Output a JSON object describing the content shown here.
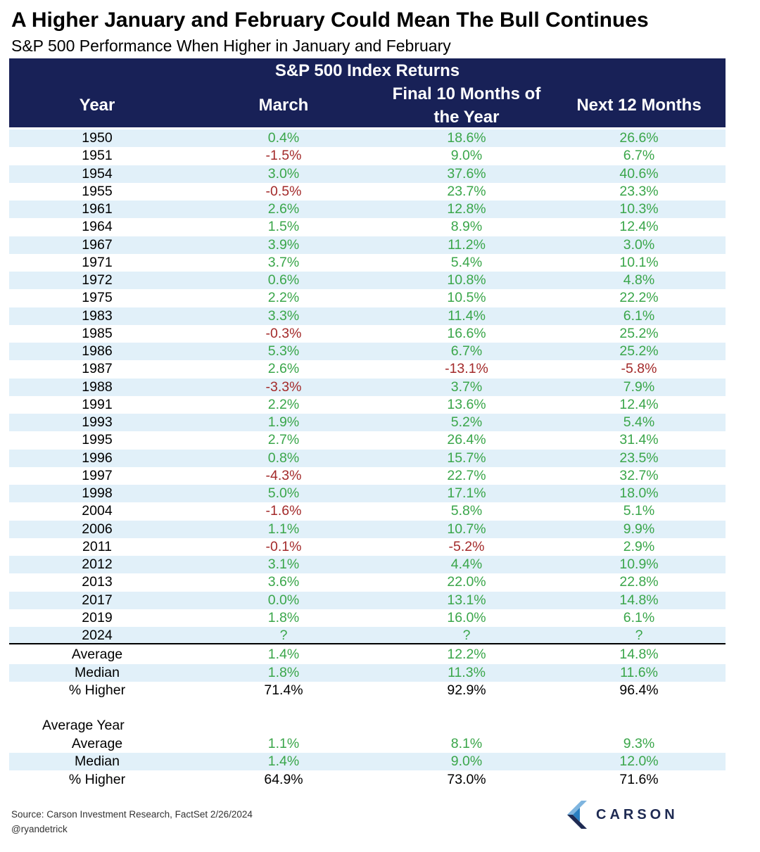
{
  "chart_data": {
    "type": "table",
    "title": "A Higher January and February Could Mean The Bull Continues",
    "subtitle": "S&P 500 Performance When Higher in January and February",
    "header": {
      "group": "S&P 500 Index Returns",
      "year": "Year",
      "march": "March",
      "final_line1": "Final 10 Months of",
      "final_line2": "the Year",
      "next12": "Next 12 Months"
    },
    "rows": [
      [
        "1950",
        "0.4%",
        "18.6%",
        "26.6%"
      ],
      [
        "1951",
        "-1.5%",
        "9.0%",
        "6.7%"
      ],
      [
        "1954",
        "3.0%",
        "37.6%",
        "40.6%"
      ],
      [
        "1955",
        "-0.5%",
        "23.7%",
        "23.3%"
      ],
      [
        "1961",
        "2.6%",
        "12.8%",
        "10.3%"
      ],
      [
        "1964",
        "1.5%",
        "8.9%",
        "12.4%"
      ],
      [
        "1967",
        "3.9%",
        "11.2%",
        "3.0%"
      ],
      [
        "1971",
        "3.7%",
        "5.4%",
        "10.1%"
      ],
      [
        "1972",
        "0.6%",
        "10.8%",
        "4.8%"
      ],
      [
        "1975",
        "2.2%",
        "10.5%",
        "22.2%"
      ],
      [
        "1983",
        "3.3%",
        "11.4%",
        "6.1%"
      ],
      [
        "1985",
        "-0.3%",
        "16.6%",
        "25.2%"
      ],
      [
        "1986",
        "5.3%",
        "6.7%",
        "25.2%"
      ],
      [
        "1987",
        "2.6%",
        "-13.1%",
        "-5.8%"
      ],
      [
        "1988",
        "-3.3%",
        "3.7%",
        "7.9%"
      ],
      [
        "1991",
        "2.2%",
        "13.6%",
        "12.4%"
      ],
      [
        "1993",
        "1.9%",
        "5.2%",
        "5.4%"
      ],
      [
        "1995",
        "2.7%",
        "26.4%",
        "31.4%"
      ],
      [
        "1996",
        "0.8%",
        "15.7%",
        "23.5%"
      ],
      [
        "1997",
        "-4.3%",
        "22.7%",
        "32.7%"
      ],
      [
        "1998",
        "5.0%",
        "17.1%",
        "18.0%"
      ],
      [
        "2004",
        "-1.6%",
        "5.8%",
        "5.1%"
      ],
      [
        "2006",
        "1.1%",
        "10.7%",
        "9.9%"
      ],
      [
        "2011",
        "-0.1%",
        "-5.2%",
        "2.9%"
      ],
      [
        "2012",
        "3.1%",
        "4.4%",
        "10.9%"
      ],
      [
        "2013",
        "3.6%",
        "22.0%",
        "22.8%"
      ],
      [
        "2017",
        "0.0%",
        "13.1%",
        "14.8%"
      ],
      [
        "2019",
        "1.8%",
        "16.0%",
        "6.1%"
      ],
      [
        "2024",
        "?",
        "?",
        "?"
      ]
    ],
    "summary": [
      [
        "Average",
        "1.4%",
        "12.2%",
        "14.8%"
      ],
      [
        "Median",
        "1.8%",
        "11.3%",
        "11.6%"
      ],
      [
        "% Higher",
        "71.4%",
        "92.9%",
        "96.4%"
      ]
    ],
    "average_year_label": "Average Year",
    "average_year": [
      [
        "Average",
        "1.1%",
        "8.1%",
        "9.3%"
      ],
      [
        "Median",
        "1.4%",
        "9.0%",
        "12.0%"
      ],
      [
        "% Higher",
        "64.9%",
        "73.0%",
        "71.6%"
      ]
    ]
  },
  "footer": {
    "source": "Source: Carson Investment Research, FactSet 2/26/2024",
    "handle": "@ryandetrick",
    "logo_text": "CARSON"
  },
  "colors": {
    "header_bg": "#182157",
    "row_shade": "#e1f0f9",
    "positive": "#3aa64a",
    "negative": "#a32a2a",
    "logo_light": "#7fb5df",
    "logo_mid": "#2a7fc1",
    "logo_dark": "#1e2a52"
  }
}
